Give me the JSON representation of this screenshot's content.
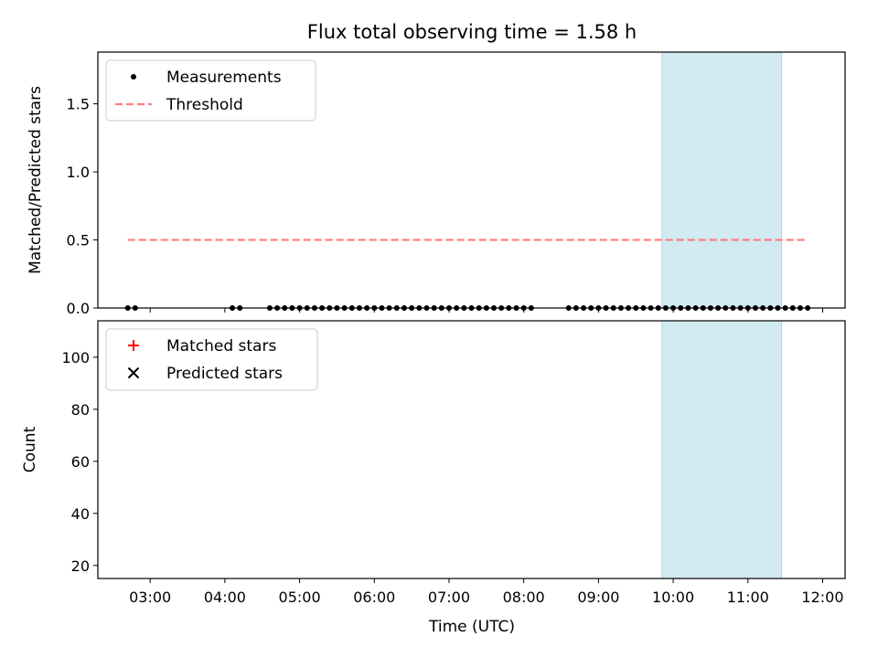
{
  "title": "Flux total observing time = 1.58 h",
  "colors": {
    "highlight": "#add8e6",
    "threshold": "#ff7f7f",
    "matched": "#ff0000",
    "predicted": "#000000",
    "measurement": "#000000"
  },
  "chart_data": [
    {
      "type": "scatter",
      "ylabel": "Matched/Predicted stars",
      "ylim": [
        0,
        1.88
      ],
      "xlim": [
        "02:18",
        "12:18"
      ],
      "yticks": [
        "0.0",
        "0.5",
        "1.0",
        "1.5"
      ],
      "grid": false,
      "legend_position": "top-left",
      "highlight_span": [
        "09:51",
        "11:27"
      ],
      "threshold": {
        "name": "Threshold",
        "value": 0.5,
        "x_range": [
          "02:42",
          "11:48"
        ]
      },
      "series": [
        {
          "name": "Measurements",
          "marker": "dot",
          "x": [
            "02:42",
            "02:48",
            "04:06",
            "04:12",
            "04:36",
            "04:42",
            "04:48",
            "04:54",
            "05:00",
            "05:06",
            "05:12",
            "05:18",
            "05:24",
            "05:30",
            "05:36",
            "05:42",
            "05:48",
            "05:54",
            "06:00",
            "06:06",
            "06:12",
            "06:18",
            "06:24",
            "06:30",
            "06:36",
            "06:42",
            "06:48",
            "06:54",
            "07:00",
            "07:06",
            "07:12",
            "07:18",
            "07:24",
            "07:30",
            "07:36",
            "07:42",
            "07:48",
            "07:54",
            "08:00",
            "08:06",
            "08:36",
            "08:42",
            "08:48",
            "08:54",
            "09:00",
            "09:06",
            "09:12",
            "09:18",
            "09:24",
            "09:30",
            "09:36",
            "09:42",
            "09:48",
            "09:54",
            "10:00",
            "10:06",
            "10:12",
            "10:18",
            "10:24",
            "10:30",
            "10:36",
            "10:42",
            "10:48",
            "10:54",
            "11:00",
            "11:06",
            "11:12",
            "11:18",
            "11:24",
            "11:30",
            "11:36",
            "11:42",
            "11:48"
          ],
          "y": [
            0,
            0,
            0,
            0,
            0,
            0,
            0,
            0,
            0,
            0,
            0,
            0,
            0,
            0,
            0,
            0,
            0,
            0,
            0,
            0,
            0,
            0,
            0,
            0,
            0,
            0,
            0,
            0,
            0,
            0,
            0,
            0,
            0,
            0,
            0,
            0,
            0,
            0,
            0,
            0,
            0,
            0,
            0,
            0,
            0,
            0,
            0,
            0,
            0,
            0,
            0,
            0,
            0,
            0,
            0,
            0,
            0,
            0,
            0,
            0,
            0,
            0,
            0,
            0,
            0,
            0,
            0,
            0,
            0,
            0,
            0,
            0,
            0
          ]
        }
      ]
    },
    {
      "type": "scatter",
      "xlabel": "Time (UTC)",
      "ylabel": "Count",
      "ylim": [
        15,
        114
      ],
      "xlim": [
        "02:18",
        "12:18"
      ],
      "yticks": [
        "20",
        "40",
        "60",
        "80",
        "100"
      ],
      "xticks": [
        "03:00",
        "04:00",
        "05:00",
        "06:00",
        "07:00",
        "08:00",
        "09:00",
        "10:00",
        "11:00",
        "12:00"
      ],
      "grid": false,
      "legend_position": "top-left",
      "highlight_span": [
        "09:51",
        "11:27"
      ],
      "series": [
        {
          "name": "Matched stars",
          "marker": "plus",
          "x": [],
          "y": []
        },
        {
          "name": "Predicted stars",
          "marker": "cross",
          "x": [],
          "y": []
        }
      ]
    }
  ]
}
